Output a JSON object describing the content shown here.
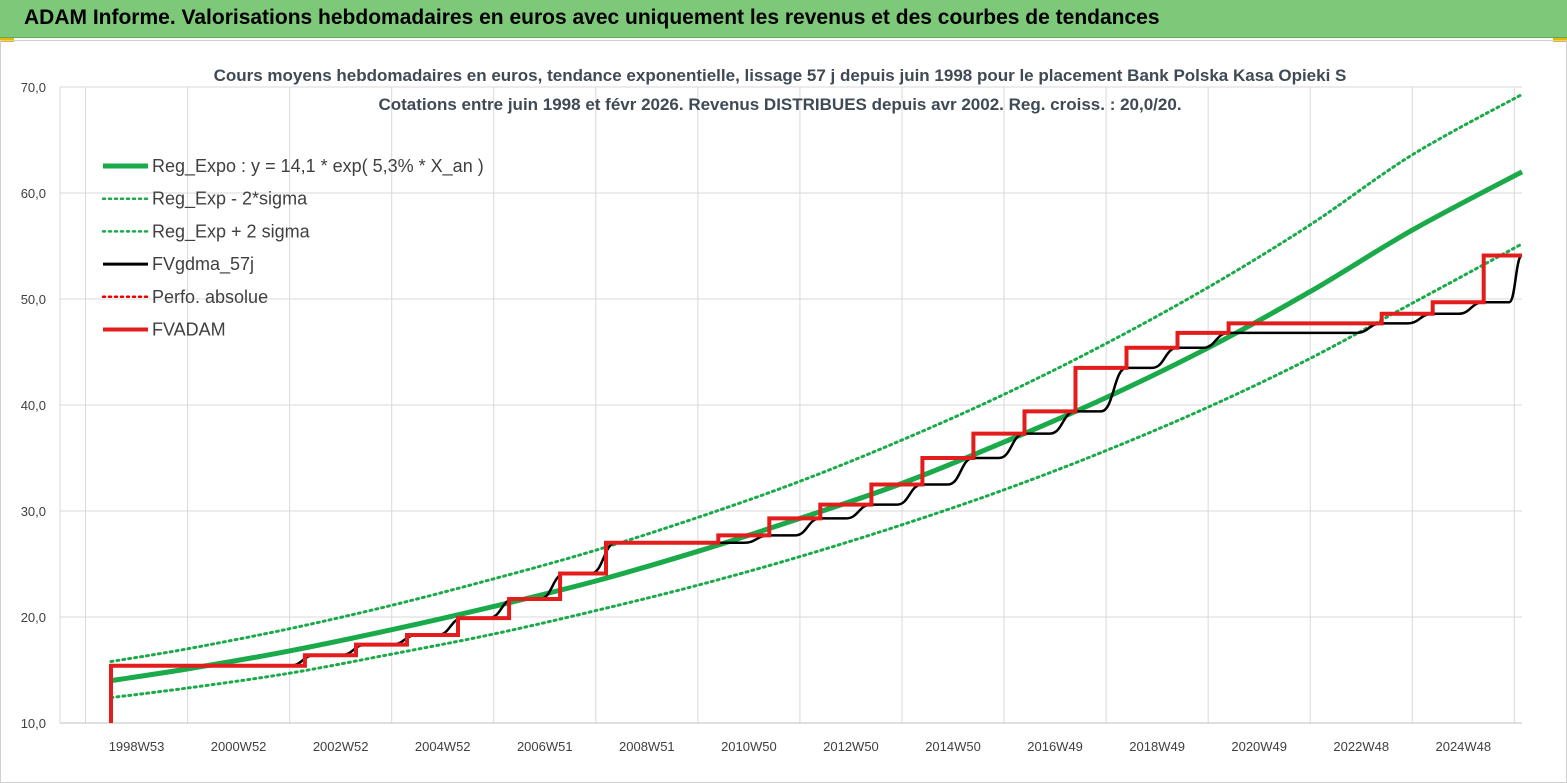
{
  "header": {
    "title": "ADAM Informe. Valorisations hebdomadaires en euros avec uniquement les revenus et des courbes de tendances"
  },
  "chart_data": {
    "type": "line",
    "title": "Cours moyens hebdomadaires en euros, tendance exponentielle, lissage 57 j depuis juin 1998 pour le placement Bank Polska Kasa Opieki S",
    "subtitle": "Cotations entre juin 1998 et févr 2026.  Revenus DISTRIBUES depuis avr 2002. Reg. croiss. : 20,0/20.",
    "xlabel": "",
    "ylabel": "",
    "ylim": [
      10,
      70
    ],
    "xlim": [
      1997.5,
      2026.15
    ],
    "y_ticks": [
      "10,0",
      "20,0",
      "30,0",
      "40,0",
      "50,0",
      "60,0",
      "70,0"
    ],
    "x_ticks": [
      {
        "label": "1998W53",
        "x": 1999.0
      },
      {
        "label": "2000W52",
        "x": 2001.0
      },
      {
        "label": "2002W52",
        "x": 2003.0
      },
      {
        "label": "2004W52",
        "x": 2005.0
      },
      {
        "label": "2006W51",
        "x": 2007.0
      },
      {
        "label": "2008W51",
        "x": 2009.0
      },
      {
        "label": "2010W50",
        "x": 2011.0
      },
      {
        "label": "2012W50",
        "x": 2013.0
      },
      {
        "label": "2014W50",
        "x": 2015.0
      },
      {
        "label": "2016W49",
        "x": 2017.0
      },
      {
        "label": "2018W49",
        "x": 2019.0
      },
      {
        "label": "2020W49",
        "x": 2021.0
      },
      {
        "label": "2022W48",
        "x": 2023.0
      },
      {
        "label": "2024W48",
        "x": 2025.0
      }
    ],
    "grid": true,
    "legend_position": "top-left",
    "series": [
      {
        "name": "Reg_Expo : y = 14,1 * exp( 5,3% *  X_an )",
        "color": "#1aaa4a",
        "style": "solid-thick",
        "x": [
          1998.5,
          2000,
          2002,
          2004,
          2006,
          2008,
          2010,
          2012,
          2014,
          2016,
          2018,
          2020,
          2022,
          2024,
          2026.15
        ],
        "values": [
          14.0,
          15.1,
          16.8,
          18.8,
          21.0,
          23.4,
          26.2,
          29.3,
          32.6,
          36.5,
          40.7,
          45.4,
          50.7,
          56.5,
          62.0
        ]
      },
      {
        "name": "Reg_Exp - 2*sigma",
        "color": "#1aaa4a",
        "style": "dotted",
        "x": [
          1998.5,
          2000,
          2002,
          2004,
          2006,
          2008,
          2010,
          2012,
          2014,
          2016,
          2018,
          2020,
          2022,
          2024,
          2026.15
        ],
        "values": [
          12.4,
          13.3,
          14.7,
          16.5,
          18.4,
          20.6,
          23.0,
          25.7,
          28.7,
          32.0,
          35.7,
          39.8,
          44.4,
          49.6,
          55.2
        ]
      },
      {
        "name": "Reg_Exp + 2 sigma",
        "color": "#1aaa4a",
        "style": "dotted",
        "x": [
          1998.5,
          2000,
          2002,
          2004,
          2006,
          2008,
          2010,
          2012,
          2014,
          2016,
          2018,
          2020,
          2022,
          2024,
          2026.15
        ],
        "values": [
          15.8,
          17.0,
          18.9,
          21.1,
          23.6,
          26.3,
          29.4,
          32.8,
          36.7,
          41.0,
          45.8,
          51.1,
          57.0,
          63.6,
          69.3
        ]
      },
      {
        "name": "FVgdma_57j",
        "color": "#000000",
        "style": "smooth-step",
        "x": [
          1998.5,
          2002.0,
          2002.5,
          2003.0,
          2003.5,
          2004.0,
          2004.5,
          2004.9,
          2005.4,
          2005.9,
          2006.4,
          2006.9,
          2007.4,
          2007.9,
          2008.4,
          2010.9,
          2011.4,
          2011.9,
          2012.4,
          2012.9,
          2013.4,
          2013.9,
          2014.4,
          2014.9,
          2015.4,
          2015.9,
          2016.4,
          2016.9,
          2017.4,
          2017.9,
          2018.4,
          2018.9,
          2019.4,
          2019.9,
          2020.4,
          2022.9,
          2023.4,
          2023.9,
          2024.4,
          2024.9,
          2025.4,
          2025.9,
          2026.15
        ],
        "values": [
          15.4,
          15.4,
          16.4,
          16.4,
          17.4,
          17.4,
          18.3,
          18.3,
          19.9,
          19.9,
          21.7,
          21.7,
          24.1,
          24.1,
          27.0,
          27.0,
          27.7,
          27.7,
          29.3,
          29.3,
          30.6,
          30.6,
          32.5,
          32.5,
          35.0,
          35.0,
          37.3,
          37.3,
          39.4,
          39.4,
          43.5,
          43.5,
          45.4,
          45.4,
          46.8,
          46.8,
          47.7,
          47.7,
          48.6,
          48.6,
          49.7,
          49.7,
          54.1
        ]
      },
      {
        "name": "Perfo. absolue",
        "color": "#e60000",
        "style": "dotted",
        "x": [],
        "values": []
      },
      {
        "name": "FVADAM",
        "color": "#e31c1c",
        "style": "step-thick",
        "x": [
          1998.5,
          1998.5,
          2002.3,
          2002.3,
          2003.3,
          2003.3,
          2004.3,
          2004.3,
          2005.3,
          2005.3,
          2006.3,
          2006.3,
          2007.3,
          2007.3,
          2008.2,
          2008.2,
          2010.4,
          2010.4,
          2011.4,
          2011.4,
          2012.4,
          2012.4,
          2013.4,
          2013.4,
          2014.4,
          2014.4,
          2015.4,
          2015.4,
          2016.4,
          2016.4,
          2017.4,
          2017.4,
          2018.4,
          2018.4,
          2019.4,
          2019.4,
          2020.4,
          2020.4,
          2023.4,
          2023.4,
          2024.4,
          2024.4,
          2025.4,
          2025.4,
          2026.15
        ],
        "values": [
          10.0,
          15.4,
          15.4,
          16.4,
          16.4,
          17.4,
          17.4,
          18.3,
          18.3,
          19.9,
          19.9,
          21.7,
          21.7,
          24.1,
          24.1,
          27.0,
          27.0,
          27.7,
          27.7,
          29.3,
          29.3,
          30.6,
          30.6,
          32.5,
          32.5,
          35.0,
          35.0,
          37.3,
          37.3,
          39.4,
          39.4,
          43.5,
          43.5,
          45.4,
          45.4,
          46.8,
          46.8,
          47.7,
          47.7,
          48.6,
          48.6,
          49.7,
          49.7,
          54.1,
          54.1
        ]
      }
    ]
  }
}
